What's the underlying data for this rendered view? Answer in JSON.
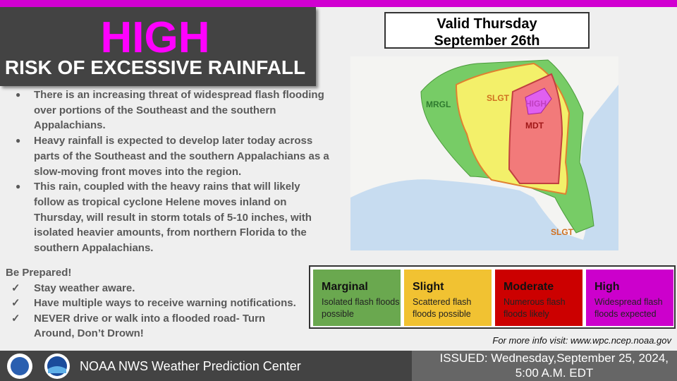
{
  "header": {
    "title": "HIGH",
    "subtitle": "RISK OF EXCESSIVE RAINFALL"
  },
  "valid": [
    "Valid Thursday",
    "September 26th"
  ],
  "bullets": [
    "There is an increasing threat of widespread flash flooding over portions of the Southeast and the southern Appalachians.",
    "Heavy rainfall is expected to develop later today across parts of the Southeast and the southern Appalachians as a slow-moving front moves into the region.",
    "This rain, coupled with the heavy rains that will likely follow as tropical cyclone Helene moves inland on Thursday, will result in storm totals of 5-10 inches, with isolated heavier amounts, from northern Florida to the southern Appalachians."
  ],
  "prepare": {
    "heading": "Be Prepared!",
    "items": [
      "Stay weather aware.",
      "Have multiple ways to receive warning notifications.",
      "NEVER drive or walk into a flooded road- Turn Around, Don’t Drown!"
    ]
  },
  "map": {
    "labels": [
      "MRGL",
      "SLGT",
      "MDT",
      "HIGH",
      "SLGT"
    ]
  },
  "legend": [
    {
      "title": "Marginal",
      "text": "Isolated flash floods possible"
    },
    {
      "title": "Slight",
      "text": "Scattered flash floods possible"
    },
    {
      "title": "Moderate",
      "text": "Numerous flash floods likely"
    },
    {
      "title": "High",
      "text": "Widespread flash floods expected"
    }
  ],
  "more_info": "For more info visit: www.wpc.ncep.noaa.gov",
  "footer": {
    "center": "NOAA NWS Weather Prediction Center",
    "issued": [
      "ISSUED: Wednesday,September 25, 2024,",
      "5:00 A.M. EDT"
    ]
  }
}
